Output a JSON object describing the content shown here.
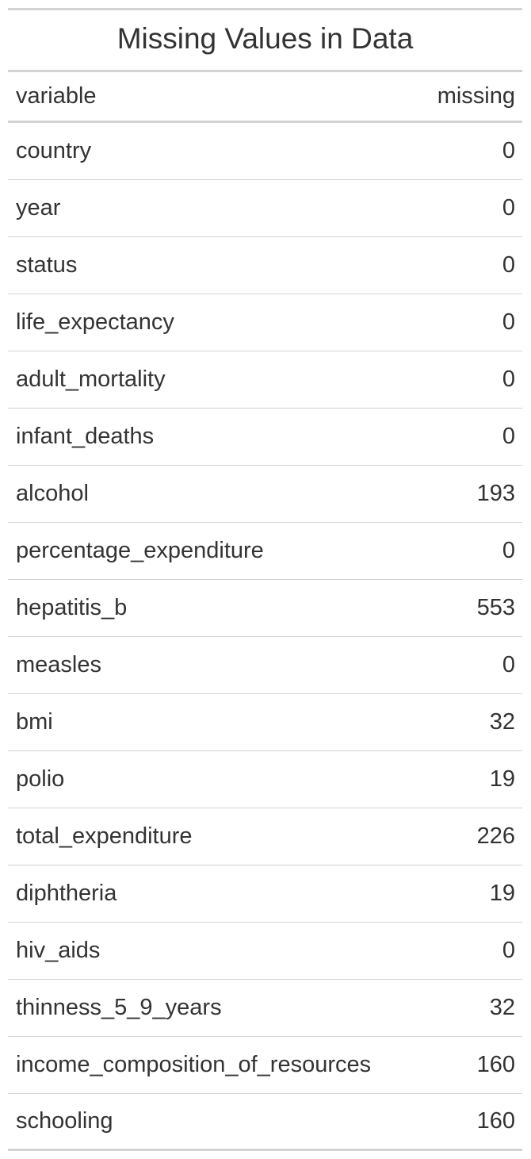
{
  "chart_data": {
    "type": "table",
    "title": "Missing Values in Data",
    "columns": [
      "variable",
      "missing"
    ],
    "rows": [
      {
        "variable": "country",
        "missing": 0
      },
      {
        "variable": "year",
        "missing": 0
      },
      {
        "variable": "status",
        "missing": 0
      },
      {
        "variable": "life_expectancy",
        "missing": 0
      },
      {
        "variable": "adult_mortality",
        "missing": 0
      },
      {
        "variable": "infant_deaths",
        "missing": 0
      },
      {
        "variable": "alcohol",
        "missing": 193
      },
      {
        "variable": "percentage_expenditure",
        "missing": 0
      },
      {
        "variable": "hepatitis_b",
        "missing": 553
      },
      {
        "variable": "measles",
        "missing": 0
      },
      {
        "variable": "bmi",
        "missing": 32
      },
      {
        "variable": "polio",
        "missing": 19
      },
      {
        "variable": "total_expenditure",
        "missing": 226
      },
      {
        "variable": "diphtheria",
        "missing": 19
      },
      {
        "variable": "hiv_aids",
        "missing": 0
      },
      {
        "variable": "thinness_5_9_years",
        "missing": 32
      },
      {
        "variable": "income_composition_of_resources",
        "missing": 160
      },
      {
        "variable": "schooling",
        "missing": 160
      }
    ]
  }
}
